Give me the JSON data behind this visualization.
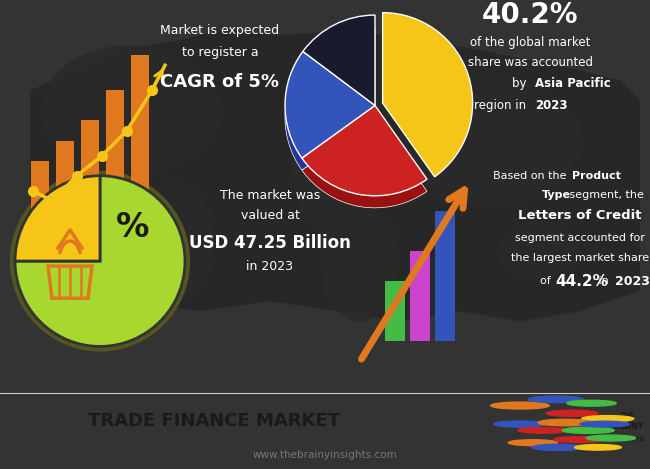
{
  "bg_color": "#333333",
  "footer_bg": "#ececec",
  "footer_text": "TRADE FINANCE MARKET",
  "footer_sub": "www.thebrainyinsights.com",
  "top_left_text1": "Market is expected",
  "top_left_text2": "to register a",
  "top_left_bold": "CAGR of 5%",
  "top_right_pct": "40.2%",
  "top_right_line1": "of the global market",
  "top_right_line2": "share was accounted",
  "top_right_line3": "by ",
  "top_right_bold3": "Asia Pacific",
  "top_right_line4": "region in ",
  "top_right_bold4": "2023",
  "bottom_center_text1": "The market was",
  "bottom_center_text2": "valued at",
  "bottom_center_bold": "USD 47.25 Billion",
  "bottom_center_text3": "in 2023",
  "bottom_right_bold3": "Letters of Credit",
  "bottom_right_line4": "segment accounted for",
  "bottom_right_line5": "the largest market share",
  "bottom_right_bold6": "44.2%",
  "bottom_right_bold6c": "2023",
  "pie_colors": [
    "#f5c518",
    "#cc2222",
    "#3355bb",
    "#1a1a2e"
  ],
  "pie_sizes": [
    40.2,
    24.9,
    20.1,
    14.8
  ],
  "bar_color_orange": "#e07820",
  "bar_color_yellow": "#f5c518",
  "line_color_top": "#f5c518",
  "bottom_bar_colors": [
    "#44bb44",
    "#cc44cc",
    "#3355bb"
  ],
  "arrow_color": "#e07820",
  "pie_3d_rim_color": "#c9a010"
}
